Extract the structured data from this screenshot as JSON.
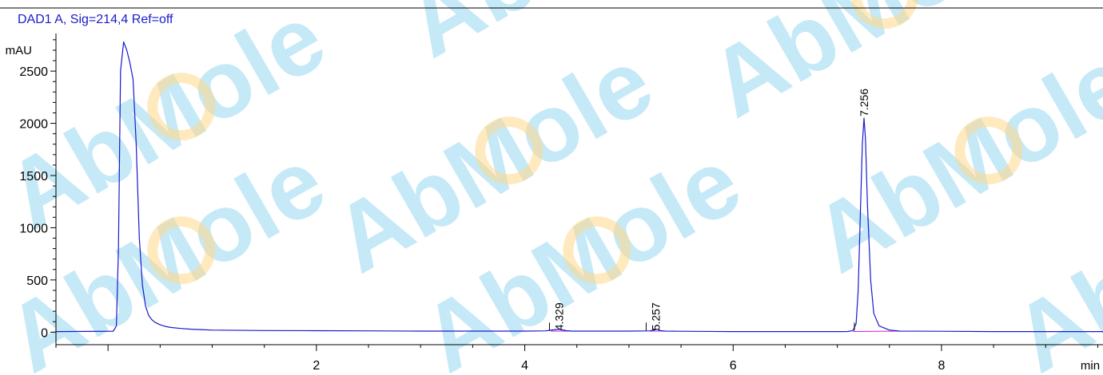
{
  "chart_data": {
    "type": "line",
    "title": "DAD1 A, Sig=214,4 Ref=off",
    "ylabel": "mAU",
    "xlabel": "min",
    "xlim": [
      -0.5,
      9.55
    ],
    "ylim": [
      -120,
      2860
    ],
    "x_ticks": [
      2,
      4,
      6,
      8
    ],
    "y_ticks": [
      0,
      500,
      1000,
      1500,
      2000,
      2500
    ],
    "grid": false,
    "colors": {
      "signal": "#1a1acc",
      "baseline": "#cc22cc",
      "watermark_text": "#7fd0ee",
      "watermark_ring": "#ffd98a"
    },
    "series": [
      {
        "x": [
          -0.5,
          0.05,
          0.08,
          0.1,
          0.12,
          0.15,
          0.18,
          0.21,
          0.24,
          0.27,
          0.3,
          0.33,
          0.36,
          0.39,
          0.42,
          0.45,
          0.5,
          0.55,
          0.6,
          0.7,
          0.8,
          1.0,
          1.5,
          2.0,
          2.5,
          3.0,
          3.5,
          4.0,
          4.2,
          4.25,
          4.3,
          4.33,
          4.36,
          4.4,
          4.45,
          5.0,
          5.2,
          5.25,
          5.26,
          5.28,
          5.3,
          5.35,
          5.5,
          6.0,
          6.5,
          7.0,
          7.1,
          7.15,
          7.18,
          7.2,
          7.22,
          7.24,
          7.256,
          7.27,
          7.29,
          7.32,
          7.35,
          7.4,
          7.5,
          7.6,
          8.0,
          8.5,
          9.0,
          9.55
        ],
        "values": [
          5,
          8,
          60,
          800,
          2500,
          2780,
          2700,
          2580,
          2420,
          1800,
          900,
          450,
          250,
          160,
          120,
          95,
          70,
          55,
          45,
          35,
          28,
          20,
          15,
          14,
          12,
          10,
          10,
          10,
          12,
          18,
          25,
          28,
          22,
          14,
          10,
          10,
          12,
          22,
          28,
          24,
          15,
          10,
          8,
          5,
          5,
          5,
          6,
          15,
          80,
          400,
          1100,
          1800,
          2050,
          1850,
          1200,
          500,
          180,
          60,
          20,
          10,
          8,
          5,
          5,
          5
        ]
      }
    ],
    "peaks": [
      {
        "label": "4.329",
        "x": 4.329
      },
      {
        "label": "5.257",
        "x": 5.257
      },
      {
        "label": "7.256",
        "x": 7.256,
        "y": 2050
      }
    ],
    "baselines": [
      {
        "x": [
          4.25,
          4.45
        ],
        "y": [
          10,
          10
        ]
      },
      {
        "x": [
          5.2,
          5.35
        ],
        "y": [
          10,
          10
        ]
      },
      {
        "x": [
          7.15,
          7.6
        ],
        "y": [
          6,
          10
        ]
      }
    ],
    "watermark": "AbMole"
  }
}
